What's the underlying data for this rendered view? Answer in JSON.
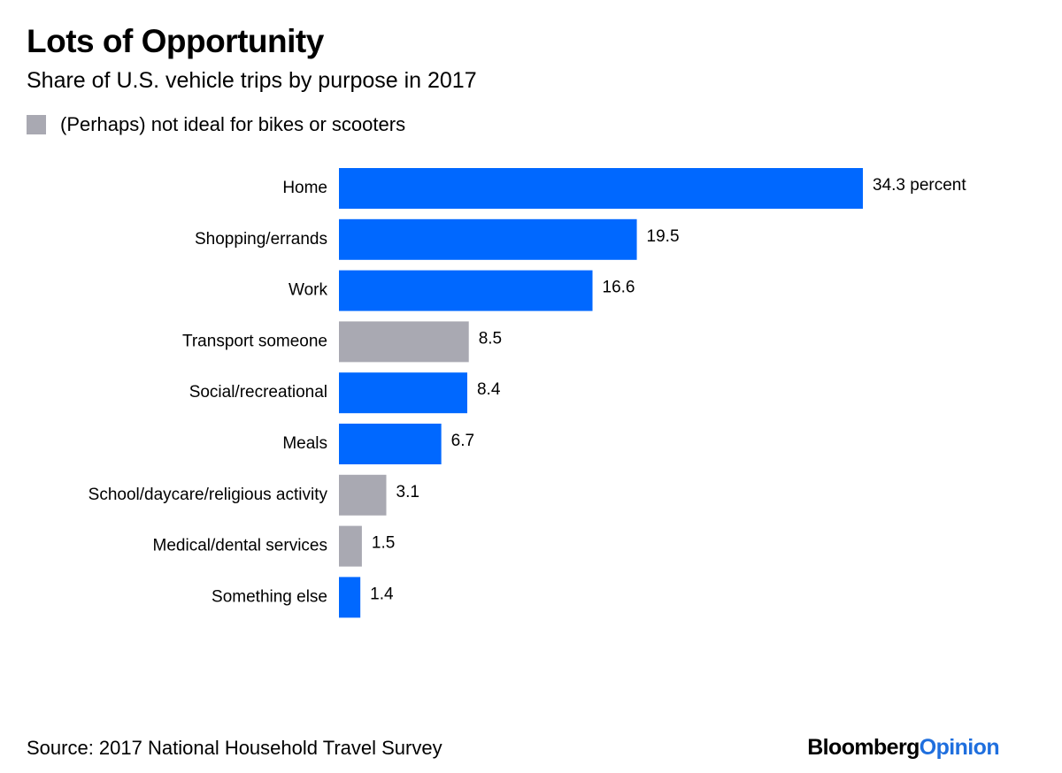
{
  "header": {
    "title": "Lots of Opportunity",
    "subtitle": "Share of U.S. vehicle trips by purpose in 2017"
  },
  "legend": {
    "label": "(Perhaps) not ideal for bikes or scooters",
    "color": "#a9a9b2"
  },
  "colors": {
    "highlight": "#0068ff",
    "muted": "#a9a9b2"
  },
  "chart_data": {
    "type": "bar",
    "orientation": "horizontal",
    "title": "Lots of Opportunity",
    "subtitle": "Share of U.S. vehicle trips by purpose in 2017",
    "xlabel": "",
    "ylabel": "",
    "xlim": [
      0,
      34.3
    ],
    "grid": false,
    "categories": [
      "Home",
      "Shopping/errands",
      "Work",
      "Transport someone",
      "Social/recreational",
      "Meals",
      "School/daycare/religious activity",
      "Medical/dental services",
      "Something else"
    ],
    "values": [
      34.3,
      19.5,
      16.6,
      8.5,
      8.4,
      6.7,
      3.1,
      1.5,
      1.4
    ],
    "value_labels": [
      "34.3 percent",
      "19.5",
      "16.6",
      "8.5",
      "8.4",
      "6.7",
      "3.1",
      "1.5",
      "1.4"
    ],
    "not_ideal": [
      false,
      false,
      false,
      true,
      false,
      false,
      true,
      true,
      false
    ],
    "unit": "percent"
  },
  "footer": {
    "source": "Source: 2017 National Household Travel Survey",
    "brand_part1": "Bloomberg",
    "brand_part2": "Opinion"
  }
}
